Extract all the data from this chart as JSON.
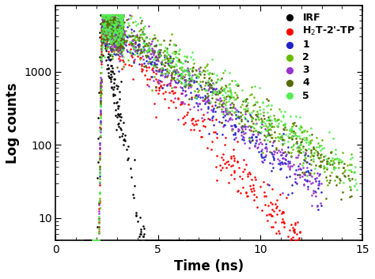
{
  "title": "",
  "xlabel": "Time (ns)",
  "ylabel": "Log counts",
  "xlim": [
    0,
    15
  ],
  "ylim_log": [
    5,
    8000
  ],
  "series": {
    "IRF": {
      "color": "#000000",
      "peak_time": 2.2,
      "peak_val": 5000,
      "decay_tau": 0.3,
      "rise_sigma": 0.05,
      "noise_floor": 5,
      "start": 1.4,
      "end": 8.0,
      "n_points": 300
    },
    "H2T": {
      "color": "#ff0000",
      "peak_time": 2.3,
      "peak_val": 5000,
      "decay_tau": 1.4,
      "rise_sigma": 0.05,
      "noise_floor": 5,
      "start": 1.8,
      "end": 12.0,
      "n_points": 500
    },
    "1": {
      "color": "#2222cc",
      "peak_time": 2.3,
      "peak_val": 5000,
      "decay_tau": 2.0,
      "rise_sigma": 0.05,
      "noise_floor": 5,
      "start": 1.8,
      "end": 13.0,
      "n_points": 550
    },
    "2": {
      "color": "#66bb00",
      "peak_time": 2.3,
      "peak_val": 5000,
      "decay_tau": 2.5,
      "rise_sigma": 0.05,
      "noise_floor": 5,
      "start": 1.8,
      "end": 14.5,
      "n_points": 600
    },
    "3": {
      "color": "#9933cc",
      "peak_time": 2.3,
      "peak_val": 5000,
      "decay_tau": 2.0,
      "rise_sigma": 0.05,
      "noise_floor": 5,
      "start": 1.8,
      "end": 13.0,
      "n_points": 550
    },
    "4": {
      "color": "#556b00",
      "peak_time": 2.3,
      "peak_val": 5000,
      "decay_tau": 2.4,
      "rise_sigma": 0.05,
      "noise_floor": 5,
      "start": 1.8,
      "end": 14.5,
      "n_points": 600
    },
    "5": {
      "color": "#55ee55",
      "peak_time": 2.3,
      "peak_val": 5000,
      "decay_tau": 2.6,
      "rise_sigma": 0.05,
      "noise_floor": 5,
      "start": 1.8,
      "end": 14.8,
      "n_points": 600
    }
  },
  "legend_labels": [
    "IRF",
    "H$_2$T-2'-TP",
    "1",
    "2",
    "3",
    "4",
    "5"
  ],
  "legend_colors": [
    "#000000",
    "#ff0000",
    "#2222cc",
    "#66bb00",
    "#9933cc",
    "#556b00",
    "#55ee55"
  ],
  "background_color": "#ffffff",
  "marker_size": 3.5
}
